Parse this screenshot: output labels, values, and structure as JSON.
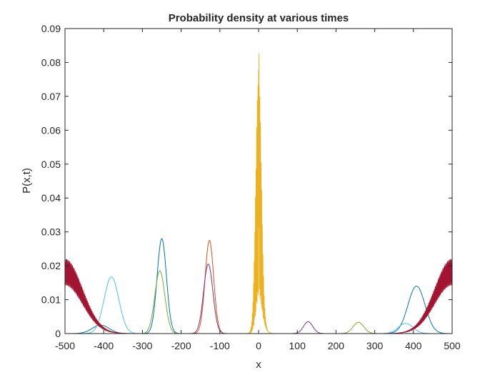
{
  "chart_data": {
    "type": "line",
    "title": "Probability density at various times",
    "xlabel": "x",
    "ylabel": "P(x,t)",
    "xlim": [
      -500,
      500
    ],
    "ylim": [
      0,
      0.09
    ],
    "xticks": [
      -500,
      -400,
      -300,
      -200,
      -100,
      0,
      100,
      200,
      300,
      400,
      500
    ],
    "yticks": [
      0,
      0.01,
      0.02,
      0.03,
      0.04,
      0.05,
      0.06,
      0.07,
      0.08,
      0.09
    ],
    "xtick_labels": [
      "-500",
      "-400",
      "-300",
      "-200",
      "-100",
      "0",
      "100",
      "200",
      "300",
      "400",
      "500"
    ],
    "ytick_labels": [
      "0",
      "0.01",
      "0.02",
      "0.03",
      "0.04",
      "0.05",
      "0.06",
      "0.07",
      "0.08",
      "0.09"
    ],
    "grid": false,
    "box": true,
    "series": [
      {
        "color": "#EDB120",
        "peaks": [
          {
            "center": 0,
            "width": 7,
            "height": 0.074,
            "oscillation": {
              "period": 1.6,
              "depth": 0.9
            }
          },
          {
            "center": 5,
            "width": 10,
            "height": 0.004
          }
        ],
        "spikes": [
          {
            "x": 1,
            "y": 0.0825
          }
        ]
      },
      {
        "color": "#D95319",
        "peaks": [
          {
            "center": -127,
            "width": 11,
            "height": 0.0275
          }
        ]
      },
      {
        "color": "#7E2F8E",
        "peaks": [
          {
            "center": -130,
            "width": 12,
            "height": 0.0205
          },
          {
            "center": 128,
            "width": 12,
            "height": 0.0035
          }
        ]
      },
      {
        "color": "#0072BD",
        "peaks": [
          {
            "center": -250,
            "width": 12,
            "height": 0.028
          },
          {
            "center": 408,
            "width": 22,
            "height": 0.014
          },
          {
            "center": -408,
            "width": 22,
            "height": 0.0025
          }
        ]
      },
      {
        "color": "#77AC30",
        "peaks": [
          {
            "center": -255,
            "width": 13,
            "height": 0.0185
          },
          {
            "center": 258,
            "width": 14,
            "height": 0.0033
          }
        ]
      },
      {
        "color": "#4DBEEE",
        "peaks": [
          {
            "center": -380,
            "width": 19,
            "height": 0.0167
          },
          {
            "center": 380,
            "width": 19,
            "height": 0.003
          }
        ]
      },
      {
        "color": "#A2142F",
        "peaks": [
          {
            "center": -500,
            "width": 45,
            "height": 0.022,
            "oscillation": {
              "period": 2.4,
              "depth": 0.35
            }
          },
          {
            "center": 500,
            "width": 45,
            "height": 0.022,
            "oscillation": {
              "period": 2.4,
              "depth": 0.35
            }
          }
        ]
      }
    ]
  }
}
